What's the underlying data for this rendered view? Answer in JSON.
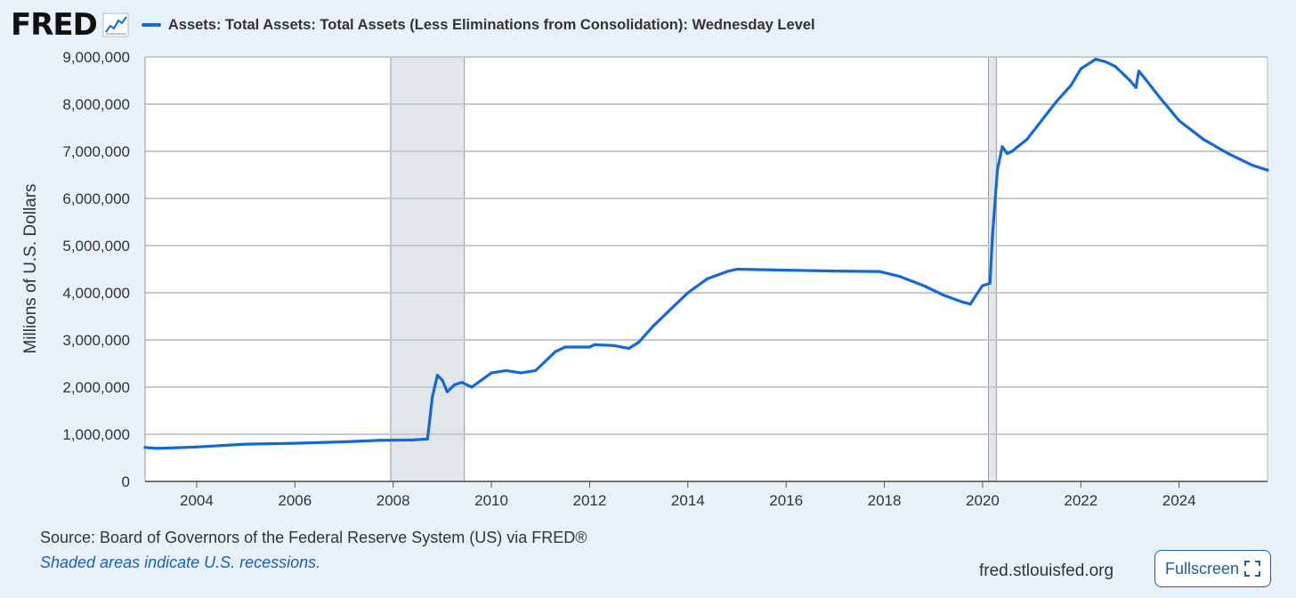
{
  "header": {
    "logo": "FRED",
    "series_title": "Assets: Total Assets: Total Assets (Less Eliminations from Consolidation): Wednesday Level"
  },
  "footer": {
    "source": "Source: Board of Governors of the Federal Reserve System (US) via FRED®",
    "note": "Shaded areas indicate U.S. recessions.",
    "site": "fred.stlouisfed.org",
    "fullscreen_label": "Fullscreen"
  },
  "colors": {
    "line": "#1269d8",
    "recession": "#e1e6ea",
    "grid": "#c8c8c8",
    "link": "#1a5fb4"
  },
  "icons": [
    "line-chart-icon",
    "fullscreen-icon"
  ],
  "chart_data": {
    "type": "line",
    "title": "Assets: Total Assets: Total Assets (Less Eliminations from Consolidation): Wednesday Level",
    "xlabel": "",
    "ylabel": "Millions of U.S. Dollars",
    "xlim": [
      2002.95,
      2025.8
    ],
    "ylim": [
      0,
      9000000
    ],
    "xticks": [
      2004,
      2006,
      2008,
      2010,
      2012,
      2014,
      2016,
      2018,
      2020,
      2022,
      2024
    ],
    "yticks": [
      0,
      1000000,
      2000000,
      3000000,
      4000000,
      5000000,
      6000000,
      7000000,
      8000000,
      9000000
    ],
    "ytick_labels": [
      "0",
      "1,000,000",
      "2,000,000",
      "3,000,000",
      "4,000,000",
      "5,000,000",
      "6,000,000",
      "7,000,000",
      "8,000,000",
      "9,000,000"
    ],
    "recessions": [
      {
        "start": 2007.95,
        "end": 2009.45
      },
      {
        "start": 2020.12,
        "end": 2020.28
      }
    ],
    "series": [
      {
        "name": "Total Assets",
        "x": [
          2002.95,
          2003.2,
          2004.0,
          2004.5,
          2005.0,
          2006.0,
          2007.0,
          2007.7,
          2008.4,
          2008.7,
          2008.8,
          2008.9,
          2009.0,
          2009.1,
          2009.25,
          2009.4,
          2009.6,
          2009.8,
          2010.0,
          2010.3,
          2010.6,
          2010.9,
          2011.1,
          2011.3,
          2011.5,
          2011.7,
          2012.0,
          2012.1,
          2012.5,
          2012.8,
          2013.0,
          2013.3,
          2013.6,
          2014.0,
          2014.4,
          2014.8,
          2015.0,
          2016.0,
          2017.0,
          2017.9,
          2018.3,
          2018.8,
          2019.2,
          2019.6,
          2019.75,
          2019.9,
          2020.0,
          2020.15,
          2020.2,
          2020.3,
          2020.4,
          2020.5,
          2020.6,
          2020.9,
          2021.2,
          2021.5,
          2021.8,
          2022.0,
          2022.3,
          2022.5,
          2022.7,
          2022.9,
          2023.0,
          2023.12,
          2023.18,
          2023.3,
          2023.6,
          2024.0,
          2024.5,
          2025.0,
          2025.5,
          2025.8
        ],
        "values": [
          720000,
          700000,
          730000,
          760000,
          790000,
          810000,
          840000,
          870000,
          880000,
          900000,
          1800000,
          2250000,
          2150000,
          1900000,
          2050000,
          2100000,
          2000000,
          2150000,
          2300000,
          2350000,
          2300000,
          2350000,
          2550000,
          2750000,
          2850000,
          2850000,
          2850000,
          2900000,
          2880000,
          2820000,
          2950000,
          3300000,
          3600000,
          4000000,
          4300000,
          4450000,
          4500000,
          4480000,
          4460000,
          4450000,
          4350000,
          4150000,
          3950000,
          3800000,
          3760000,
          4000000,
          4150000,
          4200000,
          5200000,
          6600000,
          7100000,
          6950000,
          7000000,
          7250000,
          7650000,
          8050000,
          8400000,
          8750000,
          8950000,
          8900000,
          8800000,
          8600000,
          8500000,
          8350000,
          8700000,
          8550000,
          8150000,
          7650000,
          7250000,
          6950000,
          6700000,
          6600000
        ]
      }
    ]
  }
}
